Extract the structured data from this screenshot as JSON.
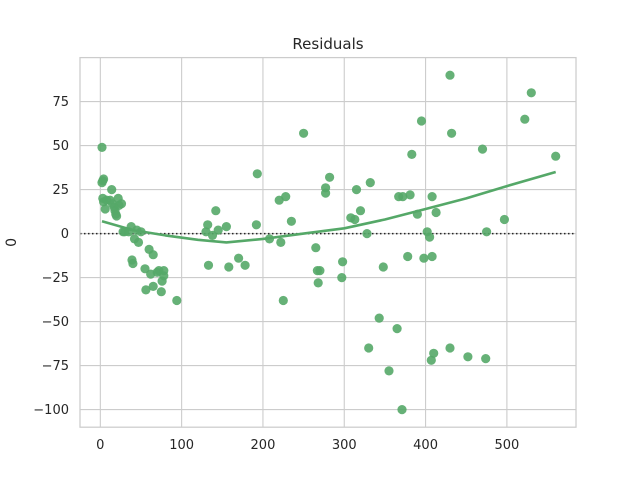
{
  "chart_data": {
    "type": "scatter",
    "title": "Residuals",
    "xlabel": "",
    "ylabel": "0",
    "xlim": [
      -25,
      585
    ],
    "ylim": [
      -110,
      100
    ],
    "x_ticks": [
      0,
      100,
      200,
      300,
      400,
      500
    ],
    "y_ticks": [
      75,
      50,
      25,
      0,
      -25,
      -50,
      -75,
      -100
    ],
    "x_tick_labels": [
      "0",
      "100",
      "200",
      "300",
      "400",
      "500"
    ],
    "y_tick_labels": [
      "75",
      "50",
      "25",
      "0",
      "−25",
      "−50",
      "−75",
      "−100"
    ],
    "grid": true,
    "reference_line": 0,
    "colors": {
      "points": "#55a868",
      "trend": "#55a868",
      "grid": "#cccccc",
      "reference": "#262626"
    },
    "points": [
      [
        2,
        49
      ],
      [
        4,
        31
      ],
      [
        3,
        30
      ],
      [
        2,
        29
      ],
      [
        3,
        20
      ],
      [
        4,
        18
      ],
      [
        6,
        14
      ],
      [
        8,
        19
      ],
      [
        12,
        19
      ],
      [
        14,
        25
      ],
      [
        15,
        17
      ],
      [
        17,
        15
      ],
      [
        18,
        13
      ],
      [
        19,
        11
      ],
      [
        20,
        10
      ],
      [
        22,
        20
      ],
      [
        23,
        16
      ],
      [
        26,
        17
      ],
      [
        28,
        1
      ],
      [
        30,
        1
      ],
      [
        35,
        1
      ],
      [
        38,
        4
      ],
      [
        39,
        -15
      ],
      [
        40,
        -17
      ],
      [
        42,
        -3
      ],
      [
        45,
        2
      ],
      [
        47,
        -5
      ],
      [
        50,
        1
      ],
      [
        55,
        -20
      ],
      [
        56,
        -32
      ],
      [
        60,
        -9
      ],
      [
        62,
        -23
      ],
      [
        65,
        -12
      ],
      [
        65,
        -30
      ],
      [
        70,
        -22
      ],
      [
        72,
        -21
      ],
      [
        75,
        -33
      ],
      [
        76,
        -27
      ],
      [
        78,
        -24
      ],
      [
        78,
        -21
      ],
      [
        94,
        -38
      ],
      [
        130,
        1
      ],
      [
        132,
        5
      ],
      [
        133,
        -18
      ],
      [
        138,
        -1
      ],
      [
        142,
        13
      ],
      [
        145,
        2
      ],
      [
        155,
        4
      ],
      [
        158,
        -19
      ],
      [
        170,
        -14
      ],
      [
        178,
        -18
      ],
      [
        192,
        5
      ],
      [
        193,
        34
      ],
      [
        208,
        -3
      ],
      [
        220,
        19
      ],
      [
        222,
        -5
      ],
      [
        225,
        -38
      ],
      [
        228,
        21
      ],
      [
        235,
        7
      ],
      [
        250,
        57
      ],
      [
        265,
        -8
      ],
      [
        267,
        -21
      ],
      [
        268,
        -28
      ],
      [
        270,
        -21
      ],
      [
        277,
        23
      ],
      [
        277,
        26
      ],
      [
        282,
        32
      ],
      [
        297,
        -25
      ],
      [
        298,
        -16
      ],
      [
        308,
        9
      ],
      [
        313,
        8
      ],
      [
        315,
        25
      ],
      [
        320,
        13
      ],
      [
        328,
        0
      ],
      [
        330,
        -65
      ],
      [
        332,
        29
      ],
      [
        343,
        -48
      ],
      [
        348,
        -19
      ],
      [
        355,
        -78
      ],
      [
        365,
        -54
      ],
      [
        367,
        21
      ],
      [
        372,
        21
      ],
      [
        371,
        -100
      ],
      [
        378,
        -13
      ],
      [
        381,
        22
      ],
      [
        383,
        45
      ],
      [
        390,
        11
      ],
      [
        395,
        64
      ],
      [
        398,
        -14
      ],
      [
        402,
        1
      ],
      [
        405,
        -2
      ],
      [
        407,
        -72
      ],
      [
        408,
        -13
      ],
      [
        408,
        21
      ],
      [
        410,
        -68
      ],
      [
        413,
        12
      ],
      [
        430,
        90
      ],
      [
        430,
        -65
      ],
      [
        432,
        57
      ],
      [
        452,
        -70
      ],
      [
        470,
        48
      ],
      [
        474,
        -71
      ],
      [
        475,
        1
      ],
      [
        497,
        8
      ],
      [
        522,
        65
      ],
      [
        530,
        80
      ],
      [
        560,
        44
      ]
    ],
    "trend": [
      [
        2,
        7
      ],
      [
        40,
        2
      ],
      [
        80,
        -1
      ],
      [
        120,
        -3.5
      ],
      [
        155,
        -5
      ],
      [
        200,
        -3
      ],
      [
        250,
        0
      ],
      [
        300,
        3
      ],
      [
        350,
        8
      ],
      [
        400,
        14
      ],
      [
        450,
        20
      ],
      [
        500,
        27
      ],
      [
        560,
        35
      ]
    ]
  }
}
